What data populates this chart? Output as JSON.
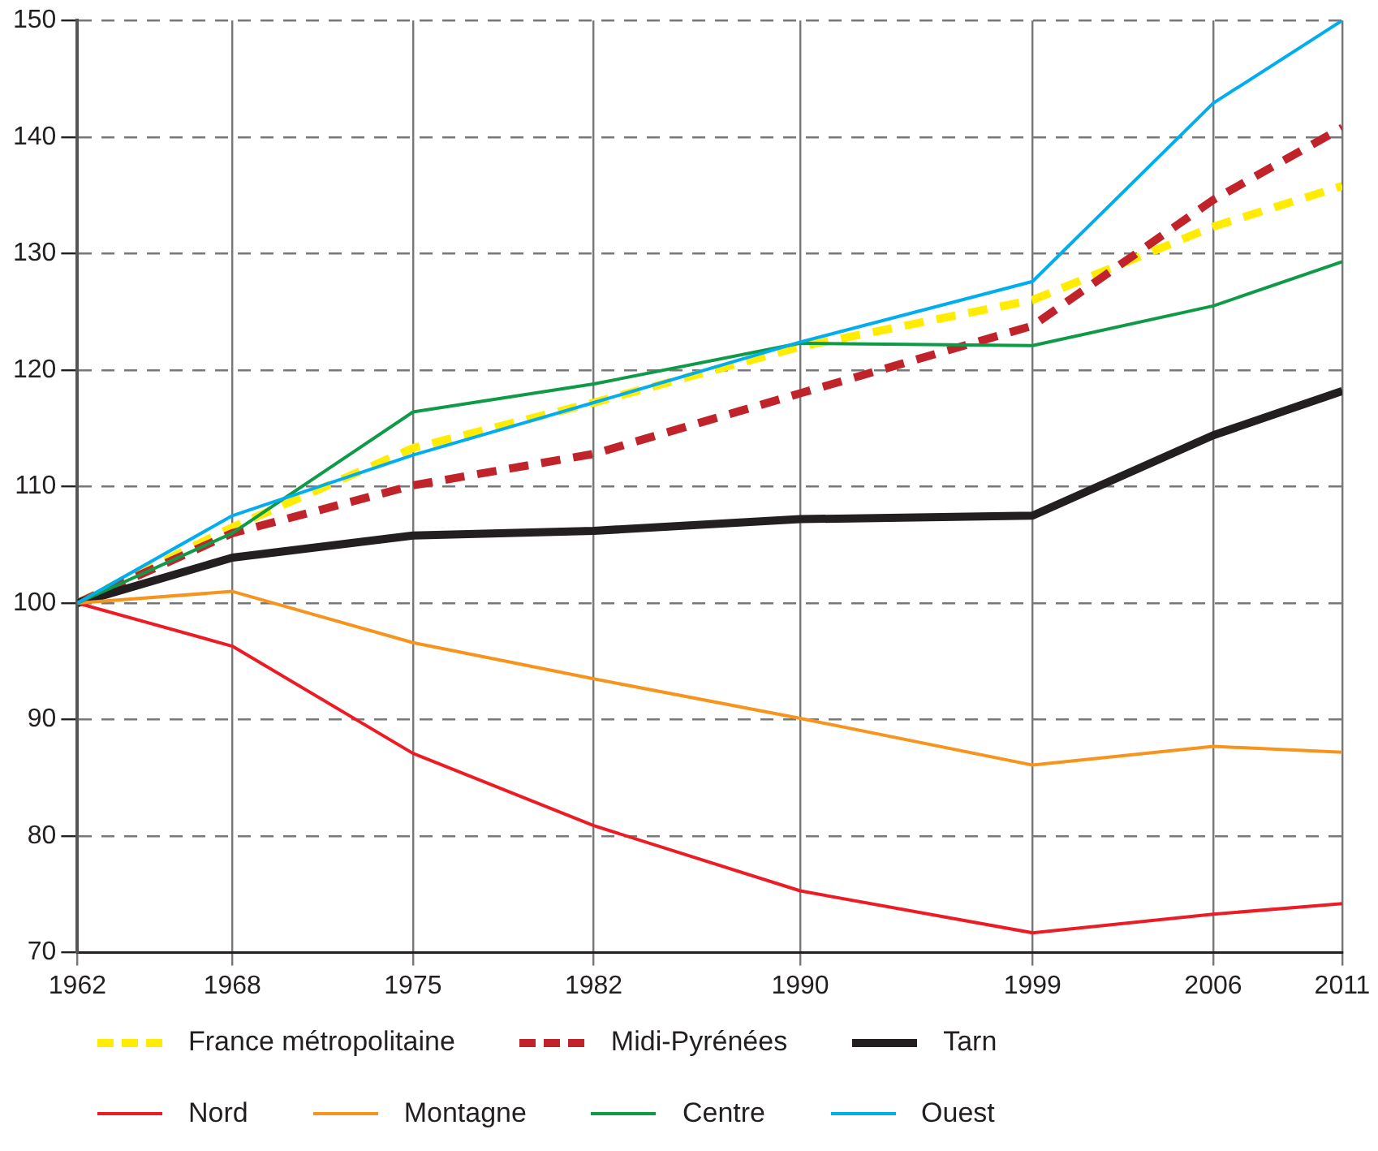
{
  "chart_data": {
    "type": "line",
    "x": [
      1962,
      1968,
      1975,
      1982,
      1990,
      1999,
      2006,
      2011
    ],
    "xlim": [
      1962,
      2011
    ],
    "xticks": [
      1962,
      1968,
      1975,
      1982,
      1990,
      1999,
      2006,
      2011
    ],
    "ylim": [
      70,
      150
    ],
    "yticks": [
      70,
      80,
      90,
      100,
      110,
      120,
      130,
      140,
      150
    ],
    "grid": true,
    "legend": "bottom",
    "marker": "none",
    "series": [
      {
        "name": "France métropolitaine",
        "color": "#ffec00",
        "line_style": "dashed",
        "values": [
          100,
          106.5,
          113.3,
          117.2,
          122,
          126,
          132.3,
          135.8
        ]
      },
      {
        "name": "Midi-Pyrénées",
        "color": "#c1232b",
        "line_style": "dashed",
        "values": [
          100,
          106,
          110.1,
          112.8,
          118,
          123.8,
          134.6,
          140.8
        ]
      },
      {
        "name": "Tarn",
        "color": "#231f20",
        "line_style": "solid",
        "values": [
          100,
          103.9,
          105.8,
          106.2,
          107.2,
          107.5,
          114.4,
          118.2
        ]
      },
      {
        "name": "Nord",
        "color": "#ed1c24",
        "line_style": "solid",
        "values": [
          100,
          96.3,
          87.1,
          80.9,
          75.3,
          71.7,
          73.3,
          74.2
        ]
      },
      {
        "name": "Montagne",
        "color": "#f7941d",
        "line_style": "solid",
        "values": [
          100,
          101,
          96.6,
          93.5,
          90.1,
          86.1,
          87.7,
          87.2
        ]
      },
      {
        "name": "Centre",
        "color": "#0f9a48",
        "line_style": "solid",
        "values": [
          100,
          106,
          116.4,
          118.8,
          122.3,
          122.1,
          125.5,
          129.3
        ]
      },
      {
        "name": "Ouest",
        "color": "#00aeef",
        "line_style": "solid",
        "values": [
          100,
          107.5,
          112.7,
          117.2,
          122.4,
          127.6,
          142.9,
          150
        ]
      }
    ]
  }
}
